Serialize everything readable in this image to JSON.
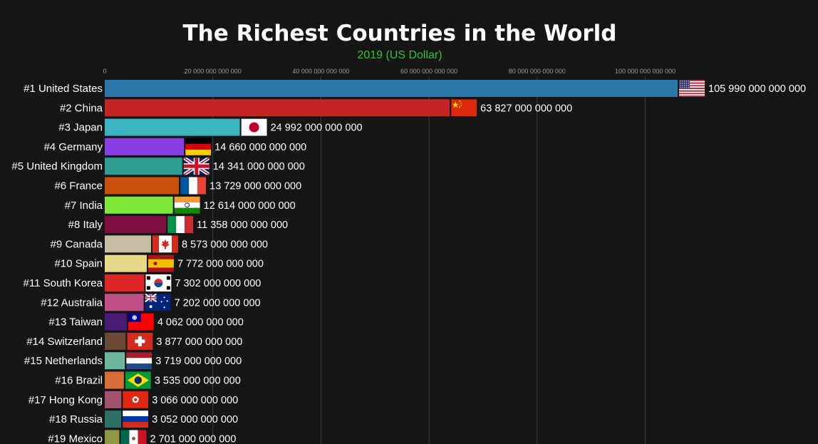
{
  "chart_data": {
    "type": "bar",
    "orientation": "horizontal",
    "title": "The Richest Countries in the World",
    "subtitle": "2019 (US Dollar)",
    "xlabel": "",
    "ylabel": "",
    "xlim": [
      0,
      105990000000000
    ],
    "x_ticks": [
      {
        "value": 0,
        "label": "0"
      },
      {
        "value": 20000000000000,
        "label": "20 000 000 000 000"
      },
      {
        "value": 40000000000000,
        "label": "40 000 000 000 000"
      },
      {
        "value": 60000000000000,
        "label": "60 000 000 000 000"
      },
      {
        "value": 80000000000000,
        "label": "80 000 000 000 000"
      },
      {
        "value": 100000000000000,
        "label": "100 000 000 000 000"
      }
    ],
    "grid": true,
    "legend": "none",
    "bars": [
      {
        "rank_label": "#1 United States",
        "value": 105990000000000,
        "value_label": "105 990 000 000 000",
        "color": "#2b77a8",
        "flag": "flag-us"
      },
      {
        "rank_label": "#2 China",
        "value": 63827000000000,
        "value_label": "63 827 000 000 000",
        "color": "#c62424",
        "flag": "flag-cn"
      },
      {
        "rank_label": "#3 Japan",
        "value": 24992000000000,
        "value_label": "24 992 000 000 000",
        "color": "#3cb4c2",
        "flag": "flag-jp"
      },
      {
        "rank_label": "#4 Germany",
        "value": 14660000000000,
        "value_label": "14 660 000 000 000",
        "color": "#8a3fe6",
        "flag": "flag-de"
      },
      {
        "rank_label": "#5 United Kingdom",
        "value": 14341000000000,
        "value_label": "14 341 000 000 000",
        "color": "#2e9e95",
        "flag": "flag-gb"
      },
      {
        "rank_label": "#6 France",
        "value": 13729000000000,
        "value_label": "13 729 000 000 000",
        "color": "#c9500d",
        "flag": "flag-fr"
      },
      {
        "rank_label": "#7 India",
        "value": 12614000000000,
        "value_label": "12 614 000 000 000",
        "color": "#7ee83a",
        "flag": "flag-in"
      },
      {
        "rank_label": "#8 Italy",
        "value": 11358000000000,
        "value_label": "11 358 000 000 000",
        "color": "#7d1040",
        "flag": "flag-it"
      },
      {
        "rank_label": "#9 Canada",
        "value": 8573000000000,
        "value_label": "8 573 000 000 000",
        "color": "#c6bea3",
        "flag": "flag-ca"
      },
      {
        "rank_label": "#10 Spain",
        "value": 7772000000000,
        "value_label": "7 772 000 000 000",
        "color": "#e9d888",
        "flag": "flag-es"
      },
      {
        "rank_label": "#11 South Korea",
        "value": 7302000000000,
        "value_label": "7 302 000 000 000",
        "color": "#de2626",
        "flag": "flag-kr"
      },
      {
        "rank_label": "#12 Australia",
        "value": 7202000000000,
        "value_label": "7 202 000 000 000",
        "color": "#c24e86",
        "flag": "flag-au"
      },
      {
        "rank_label": "#13 Taiwan",
        "value": 4062000000000,
        "value_label": "4 062 000 000 000",
        "color": "#4a1a78",
        "flag": "flag-tw"
      },
      {
        "rank_label": "#14 Switzerland",
        "value": 3877000000000,
        "value_label": "3 877 000 000 000",
        "color": "#6a4a35",
        "flag": "flag-ch"
      },
      {
        "rank_label": "#15 Netherlands",
        "value": 3719000000000,
        "value_label": "3 719 000 000 000",
        "color": "#6db59c",
        "flag": "flag-nl"
      },
      {
        "rank_label": "#16 Brazil",
        "value": 3535000000000,
        "value_label": "3 535 000 000 000",
        "color": "#d86d3a",
        "flag": "flag-br"
      },
      {
        "rank_label": "#17 Hong Kong",
        "value": 3066000000000,
        "value_label": "3 066 000 000 000",
        "color": "#a35370",
        "flag": "flag-hk"
      },
      {
        "rank_label": "#18 Russia",
        "value": 3052000000000,
        "value_label": "3 052 000 000 000",
        "color": "#2e6e64",
        "flag": "flag-ru"
      },
      {
        "rank_label": "#19 Mexico",
        "value": 2701000000000,
        "value_label": "2 701 000 000 000",
        "color": "#8e9840",
        "flag": "flag-mx"
      }
    ]
  },
  "colors": {
    "background": "#161616",
    "subtitle": "#31c236",
    "grid": "#3c3c3c",
    "tick_text": "#9a9a9a"
  }
}
